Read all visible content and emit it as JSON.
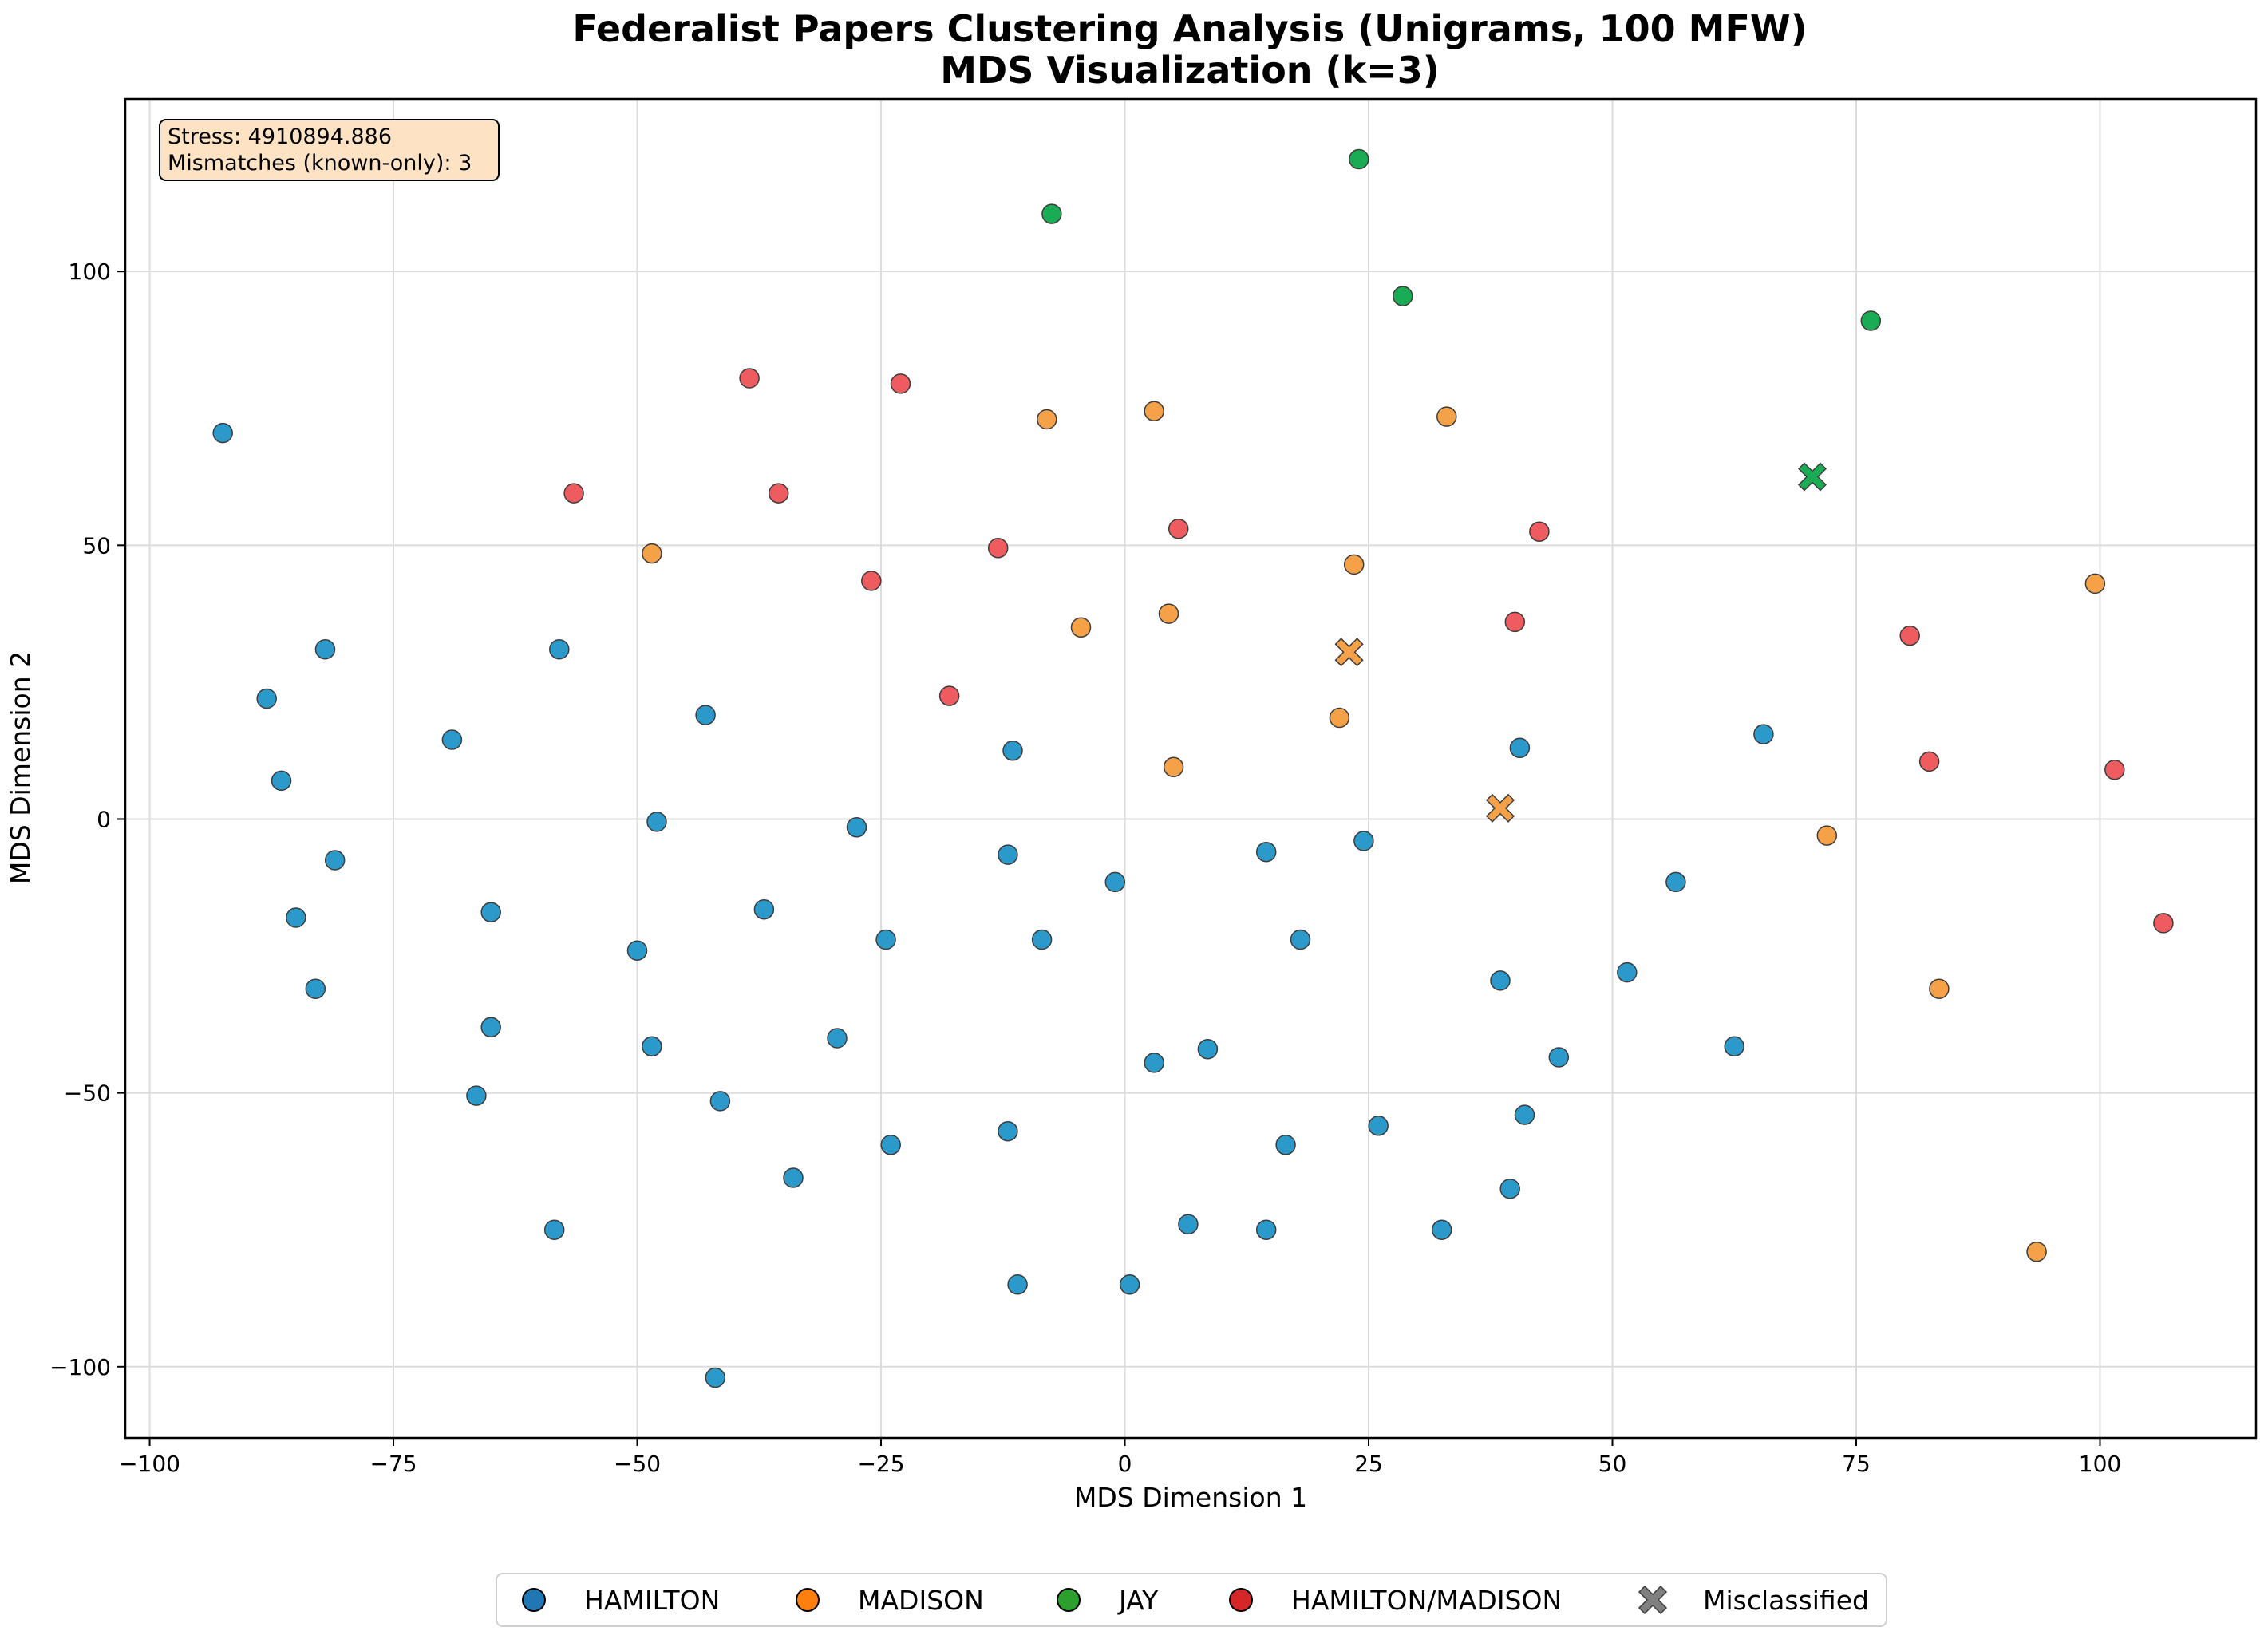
{
  "chart_data": {
    "type": "scatter",
    "title": [
      "Federalist Papers Clustering Analysis (Unigrams, 100 MFW)",
      "MDS Visualization (k=3)"
    ],
    "xlabel": "MDS Dimension 1",
    "ylabel": "MDS Dimension 2",
    "xlim": [
      -102.5,
      116
    ],
    "ylim": [
      -113,
      131.5
    ],
    "xticks": [
      -100,
      -75,
      -50,
      -25,
      0,
      25,
      50,
      75,
      100
    ],
    "yticks": [
      -100,
      -50,
      0,
      50,
      100
    ],
    "xtick_labels": [
      "−100",
      "−75",
      "−50",
      "−25",
      "0",
      "25",
      "50",
      "75",
      "100"
    ],
    "ytick_labels": [
      "−100",
      "−50",
      "0",
      "50",
      "100"
    ],
    "grid": true,
    "legend_position": "bottom-center-outside",
    "stats": {
      "stress": "Stress: 4910894.886",
      "mismatches": "Mismatches (known-only): 3"
    },
    "legend": [
      {
        "label": "HAMILTON",
        "color": "#1f77b4",
        "marker": "circle"
      },
      {
        "label": "MADISON",
        "color": "#ff7f0e",
        "marker": "circle"
      },
      {
        "label": "JAY",
        "color": "#2ca02c",
        "marker": "circle"
      },
      {
        "label": "HAMILTON/MADISON",
        "color": "#d62728",
        "marker": "circle"
      },
      {
        "label": "Misclassified",
        "color": "#808080",
        "marker": "x"
      }
    ],
    "series": [
      {
        "name": "HAMILTON",
        "color": "#2b9acb",
        "points": [
          [
            -92.5,
            70.5
          ],
          [
            -88,
            22
          ],
          [
            -82,
            31
          ],
          [
            -86.5,
            7
          ],
          [
            -81,
            -7.5
          ],
          [
            -85,
            -18
          ],
          [
            -83,
            -31
          ],
          [
            -69,
            14.5
          ],
          [
            -58,
            31
          ],
          [
            -65,
            -17
          ],
          [
            -65,
            -38
          ],
          [
            -66.5,
            -50.5
          ],
          [
            -58.5,
            -75
          ],
          [
            -43,
            19
          ],
          [
            -48,
            -0.5
          ],
          [
            -50,
            -24
          ],
          [
            -48.5,
            -41.5
          ],
          [
            -37,
            -16.5
          ],
          [
            -41.5,
            -51.5
          ],
          [
            -34,
            -65.5
          ],
          [
            -42,
            -102
          ],
          [
            -27.5,
            -1.5
          ],
          [
            -29.5,
            -40
          ],
          [
            -24.5,
            -22
          ],
          [
            -24,
            -59.5
          ],
          [
            -11.5,
            12.5
          ],
          [
            -12,
            -6.5
          ],
          [
            -8.5,
            -22
          ],
          [
            -12,
            -57
          ],
          [
            -11,
            -85
          ],
          [
            -1,
            -11.5
          ],
          [
            3,
            -44.5
          ],
          [
            6.5,
            -74
          ],
          [
            0.5,
            -85
          ],
          [
            8.5,
            -42
          ],
          [
            14.5,
            -6
          ],
          [
            18,
            -22
          ],
          [
            16.5,
            -59.5
          ],
          [
            14.5,
            -75
          ],
          [
            24.5,
            -4
          ],
          [
            26,
            -56
          ],
          [
            32.5,
            -75
          ],
          [
            38.5,
            -29.5
          ],
          [
            40.5,
            13
          ],
          [
            39.5,
            -67.5
          ],
          [
            41,
            -54
          ],
          [
            44.5,
            -43.5
          ],
          [
            51.5,
            -28
          ],
          [
            56.5,
            -11.5
          ],
          [
            62.5,
            -41.5
          ],
          [
            65.5,
            15.5
          ]
        ]
      },
      {
        "name": "MADISON",
        "color": "#f5a148",
        "points": [
          [
            -48.5,
            48.5
          ],
          [
            -8,
            73
          ],
          [
            3,
            74.5
          ],
          [
            -4.5,
            35
          ],
          [
            4.5,
            37.5
          ],
          [
            5,
            9.5
          ],
          [
            23.5,
            46.5
          ],
          [
            22,
            18.5
          ],
          [
            33,
            73.5
          ],
          [
            72,
            -3
          ],
          [
            83.5,
            -31
          ],
          [
            99.5,
            43
          ],
          [
            93.5,
            -79
          ]
        ]
      },
      {
        "name": "JAY",
        "color": "#1aac55",
        "points": [
          [
            -7.5,
            110.5
          ],
          [
            24,
            120.5
          ],
          [
            28.5,
            95.5
          ],
          [
            76.5,
            91
          ]
        ]
      },
      {
        "name": "HAMILTON/MADISON",
        "color": "#ee5c5f",
        "points": [
          [
            -56.5,
            59.5
          ],
          [
            -38.5,
            80.5
          ],
          [
            -23,
            79.5
          ],
          [
            -35.5,
            59.5
          ],
          [
            -26,
            43.5
          ],
          [
            -13,
            49.5
          ],
          [
            -18,
            22.5
          ],
          [
            5.5,
            53
          ],
          [
            42.5,
            52.5
          ],
          [
            40,
            36
          ],
          [
            80.5,
            33.5
          ],
          [
            82.5,
            10.5
          ],
          [
            101.5,
            9
          ],
          [
            106.5,
            -19
          ]
        ]
      }
    ],
    "misclassified": [
      {
        "x": 70.5,
        "y": 62.5,
        "color": "#1aac55"
      },
      {
        "x": 23,
        "y": 30.5,
        "color": "#f5a148"
      },
      {
        "x": 38.5,
        "y": 2,
        "color": "#f5a148"
      }
    ]
  }
}
